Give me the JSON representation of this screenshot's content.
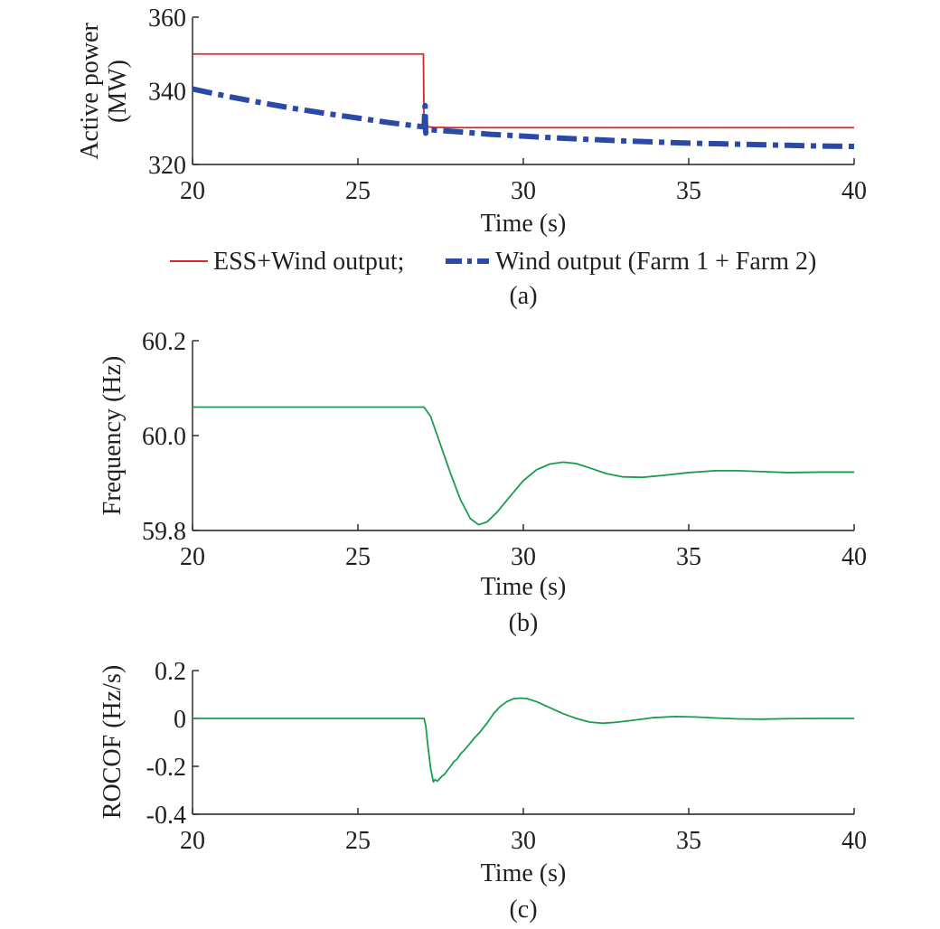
{
  "chart_data": [
    {
      "type": "line",
      "panel_label": "(a)",
      "xlabel": "Time (s)",
      "ylabel_lines": [
        "Active power",
        "(MW)"
      ],
      "xlim": [
        20,
        40
      ],
      "ylim": [
        320,
        360
      ],
      "xticks": [
        20,
        25,
        30,
        35,
        40
      ],
      "yticks": [
        320,
        340,
        360
      ],
      "ytick_labels": [
        "320",
        "340",
        "360"
      ],
      "legend_position": "bottom",
      "series": [
        {
          "name": "ESS+Wind output;",
          "color": "#d7282f",
          "style": "solid",
          "points": [
            [
              20,
              350
            ],
            [
              26.98,
              350
            ],
            [
              27.0,
              329
            ],
            [
              27.02,
              331
            ],
            [
              27.06,
              330.5
            ],
            [
              27.15,
              330.2
            ],
            [
              27.3,
              330.1
            ],
            [
              28,
              330
            ],
            [
              40,
              330
            ]
          ]
        },
        {
          "name": "Wind output (Farm 1 + Farm 2)",
          "color": "#2b4aa8",
          "style": "dashdot",
          "points": [
            [
              20,
              340.5
            ],
            [
              21,
              338.6
            ],
            [
              22,
              336.9
            ],
            [
              23,
              335.3
            ],
            [
              24,
              333.9
            ],
            [
              25,
              332.6
            ],
            [
              26,
              331.3
            ],
            [
              27,
              330.2
            ],
            [
              27.03,
              336
            ],
            [
              27.05,
              328.5
            ],
            [
              27.1,
              329.5
            ],
            [
              28,
              328.9
            ],
            [
              29,
              328.2
            ],
            [
              30,
              327.7
            ],
            [
              31,
              327.2
            ],
            [
              32,
              326.8
            ],
            [
              33,
              326.4
            ],
            [
              34,
              326.1
            ],
            [
              35,
              325.8
            ],
            [
              36,
              325.6
            ],
            [
              37,
              325.4
            ],
            [
              38,
              325.2
            ],
            [
              39,
              325.0
            ],
            [
              40,
              324.9
            ]
          ]
        }
      ]
    },
    {
      "type": "line",
      "panel_label": "(b)",
      "xlabel": "Time (s)",
      "ylabel_lines": [
        "Frequency (Hz)"
      ],
      "xlim": [
        20,
        40
      ],
      "ylim": [
        59.8,
        60.2
      ],
      "xticks": [
        20,
        25,
        30,
        35,
        40
      ],
      "yticks": [
        59.8,
        60.0,
        60.2
      ],
      "ytick_labels": [
        "59.8",
        "60.0",
        "60.2"
      ],
      "series": [
        {
          "color": "#1a9c4f",
          "style": "solid",
          "points": [
            [
              20,
              60.06
            ],
            [
              27.0,
              60.06
            ],
            [
              27.2,
              60.04
            ],
            [
              27.5,
              59.98
            ],
            [
              27.8,
              59.92
            ],
            [
              28.1,
              59.865
            ],
            [
              28.4,
              59.825
            ],
            [
              28.65,
              59.812
            ],
            [
              28.9,
              59.818
            ],
            [
              29.2,
              59.838
            ],
            [
              29.6,
              59.872
            ],
            [
              30.0,
              59.905
            ],
            [
              30.4,
              59.928
            ],
            [
              30.8,
              59.94
            ],
            [
              31.2,
              59.944
            ],
            [
              31.6,
              59.941
            ],
            [
              32.0,
              59.932
            ],
            [
              32.5,
              59.92
            ],
            [
              33.0,
              59.913
            ],
            [
              33.6,
              59.912
            ],
            [
              34.2,
              59.916
            ],
            [
              35.0,
              59.922
            ],
            [
              35.8,
              59.926
            ],
            [
              36.5,
              59.926
            ],
            [
              37.2,
              59.924
            ],
            [
              38.0,
              59.922
            ],
            [
              39.0,
              59.923
            ],
            [
              40,
              59.923
            ]
          ]
        }
      ]
    },
    {
      "type": "line",
      "panel_label": "(c)",
      "xlabel": "Time (s)",
      "ylabel_lines": [
        "ROCOF (Hz/s)"
      ],
      "xlim": [
        20,
        40
      ],
      "ylim": [
        -0.4,
        0.2
      ],
      "xticks": [
        20,
        25,
        30,
        35,
        40
      ],
      "yticks": [
        -0.4,
        -0.2,
        0,
        0.2
      ],
      "ytick_labels": [
        "-0.4",
        "-0.2",
        "0",
        "0.2"
      ],
      "series": [
        {
          "color": "#1a9c4f",
          "style": "solid",
          "points": [
            [
              20,
              0.0
            ],
            [
              27.0,
              0.0
            ],
            [
              27.05,
              -0.03
            ],
            [
              27.12,
              -0.12
            ],
            [
              27.2,
              -0.21
            ],
            [
              27.28,
              -0.265
            ],
            [
              27.33,
              -0.255
            ],
            [
              27.4,
              -0.262
            ],
            [
              27.48,
              -0.25
            ],
            [
              27.55,
              -0.24
            ],
            [
              27.62,
              -0.233
            ],
            [
              27.7,
              -0.218
            ],
            [
              27.8,
              -0.2
            ],
            [
              27.9,
              -0.18
            ],
            [
              28.0,
              -0.17
            ],
            [
              28.1,
              -0.148
            ],
            [
              28.2,
              -0.135
            ],
            [
              28.35,
              -0.11
            ],
            [
              28.5,
              -0.085
            ],
            [
              28.7,
              -0.055
            ],
            [
              28.9,
              -0.02
            ],
            [
              29.1,
              0.02
            ],
            [
              29.3,
              0.05
            ],
            [
              29.5,
              0.07
            ],
            [
              29.7,
              0.082
            ],
            [
              29.9,
              0.085
            ],
            [
              30.1,
              0.083
            ],
            [
              30.4,
              0.07
            ],
            [
              30.8,
              0.045
            ],
            [
              31.2,
              0.02
            ],
            [
              31.6,
              0.0
            ],
            [
              32.0,
              -0.015
            ],
            [
              32.4,
              -0.02
            ],
            [
              32.8,
              -0.016
            ],
            [
              33.3,
              -0.008
            ],
            [
              33.9,
              0.003
            ],
            [
              34.6,
              0.008
            ],
            [
              35.2,
              0.006
            ],
            [
              35.8,
              0.002
            ],
            [
              36.5,
              -0.002
            ],
            [
              37.2,
              -0.003
            ],
            [
              38.0,
              -0.001
            ],
            [
              39.0,
              0.0
            ],
            [
              40,
              0.0
            ]
          ]
        }
      ]
    }
  ]
}
